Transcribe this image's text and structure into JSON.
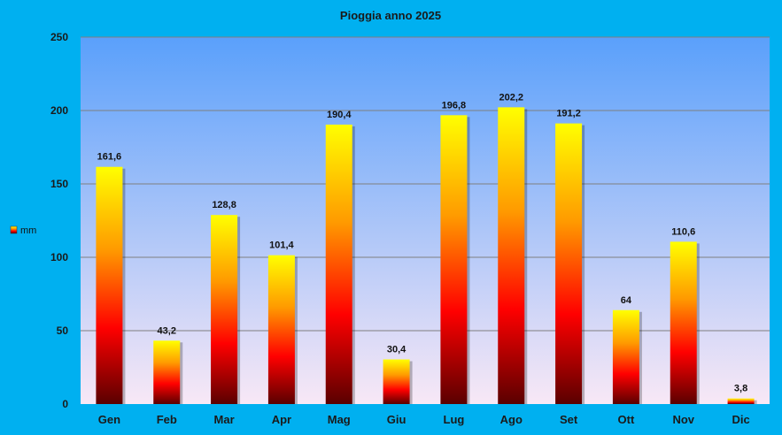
{
  "chart_data": {
    "type": "bar",
    "title": "Pioggia anno 2025",
    "categories": [
      "Gen",
      "Feb",
      "Mar",
      "Apr",
      "Mag",
      "Giu",
      "Lug",
      "Ago",
      "Set",
      "Ott",
      "Nov",
      "Dic"
    ],
    "series": [
      {
        "name": "mm",
        "values": [
          161.6,
          43.2,
          128.8,
          101.4,
          190.4,
          30.4,
          196.8,
          202.2,
          191.2,
          64,
          110.6,
          3.8
        ],
        "labels": [
          "161,6",
          "43,2",
          "128,8",
          "101,4",
          "190,4",
          "30,4",
          "196,8",
          "202,2",
          "191,2",
          "64",
          "110,6",
          "3,8"
        ]
      }
    ],
    "ylim": [
      0,
      250
    ],
    "yticks": [
      0,
      50,
      100,
      150,
      200,
      250
    ],
    "xlabel": "",
    "ylabel": "",
    "grid": true,
    "legend_position": "left",
    "colors": {
      "background": "#00b0f0",
      "plot_top": "#5aa0fb",
      "plot_bottom": "#f8e8f6",
      "bar_top": "#ffff00",
      "bar_mid_orange": "#ff9a00",
      "bar_mid_red": "#ff0000",
      "bar_bottom": "#5a0000",
      "gridline": "#7f7f7f"
    }
  }
}
